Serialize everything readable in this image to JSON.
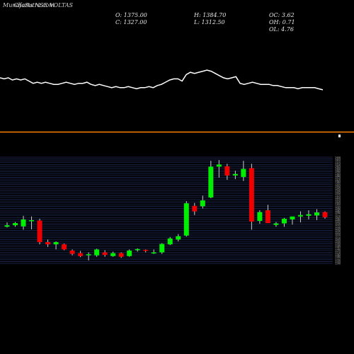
{
  "header": {
    "watermark": "MunafaSutra.com",
    "title": "Charts NSE VOLTAS",
    "open": "O: 1375.00",
    "close": "C: 1327.00",
    "high": "H: 1384.70",
    "low": "L: 1312.50",
    "oc": "OC: 3.62",
    "oh": "OH: 0.71",
    "ol": "OL: 4.76"
  },
  "chart_data": {
    "type": "candlestick",
    "candles": [
      {
        "o": 1240,
        "h": 1252,
        "l": 1238,
        "c": 1244
      },
      {
        "o": 1244,
        "h": 1253,
        "l": 1240,
        "c": 1250
      },
      {
        "o": 1241,
        "h": 1270,
        "l": 1232,
        "c": 1260
      },
      {
        "o": 1256,
        "h": 1268,
        "l": 1233,
        "c": 1258
      },
      {
        "o": 1257,
        "h": 1262,
        "l": 1192,
        "c": 1198
      },
      {
        "o": 1198,
        "h": 1205,
        "l": 1185,
        "c": 1192
      },
      {
        "o": 1192,
        "h": 1200,
        "l": 1178,
        "c": 1198
      },
      {
        "o": 1192,
        "h": 1194,
        "l": 1176,
        "c": 1178
      },
      {
        "o": 1175,
        "h": 1178,
        "l": 1162,
        "c": 1166
      },
      {
        "o": 1168,
        "h": 1174,
        "l": 1157,
        "c": 1160
      },
      {
        "o": 1163,
        "h": 1170,
        "l": 1148,
        "c": 1165
      },
      {
        "o": 1162,
        "h": 1180,
        "l": 1158,
        "c": 1178
      },
      {
        "o": 1170,
        "h": 1176,
        "l": 1158,
        "c": 1163
      },
      {
        "o": 1160,
        "h": 1172,
        "l": 1158,
        "c": 1168
      },
      {
        "o": 1168,
        "h": 1170,
        "l": 1155,
        "c": 1158
      },
      {
        "o": 1160,
        "h": 1178,
        "l": 1158,
        "c": 1175
      },
      {
        "o": 1177,
        "h": 1181,
        "l": 1172,
        "c": 1179
      },
      {
        "o": 1177,
        "h": 1178,
        "l": 1170,
        "c": 1175
      },
      {
        "o": 1168,
        "h": 1178,
        "l": 1166,
        "c": 1170
      },
      {
        "o": 1170,
        "h": 1195,
        "l": 1166,
        "c": 1193
      },
      {
        "o": 1192,
        "h": 1212,
        "l": 1190,
        "c": 1208
      },
      {
        "o": 1205,
        "h": 1220,
        "l": 1200,
        "c": 1214
      },
      {
        "o": 1216,
        "h": 1310,
        "l": 1213,
        "c": 1304
      },
      {
        "o": 1297,
        "h": 1305,
        "l": 1272,
        "c": 1282
      },
      {
        "o": 1296,
        "h": 1325,
        "l": 1290,
        "c": 1312
      },
      {
        "o": 1320,
        "h": 1420,
        "l": 1318,
        "c": 1404
      },
      {
        "o": 1404,
        "h": 1422,
        "l": 1374,
        "c": 1410
      },
      {
        "o": 1405,
        "h": 1412,
        "l": 1368,
        "c": 1380
      },
      {
        "o": 1380,
        "h": 1393,
        "l": 1370,
        "c": 1384
      },
      {
        "o": 1376,
        "h": 1420,
        "l": 1365,
        "c": 1398
      },
      {
        "o": 1400,
        "h": 1412,
        "l": 1232,
        "c": 1254
      },
      {
        "o": 1256,
        "h": 1285,
        "l": 1248,
        "c": 1280
      },
      {
        "o": 1285,
        "h": 1300,
        "l": 1250,
        "c": 1250
      },
      {
        "o": 1245,
        "h": 1253,
        "l": 1240,
        "c": 1249
      },
      {
        "o": 1249,
        "h": 1264,
        "l": 1240,
        "c": 1262
      },
      {
        "o": 1260,
        "h": 1267,
        "l": 1246,
        "c": 1268
      },
      {
        "o": 1268,
        "h": 1282,
        "l": 1252,
        "c": 1272
      },
      {
        "o": 1270,
        "h": 1285,
        "l": 1260,
        "c": 1274
      },
      {
        "o": 1271,
        "h": 1288,
        "l": 1258,
        "c": 1279
      },
      {
        "o": 1280,
        "h": 1282,
        "l": 1262,
        "c": 1266
      }
    ],
    "ylim": [
      1140,
      1430
    ],
    "upColor": "#00ee00",
    "downColor": "#ee0000",
    "grid": true,
    "y_tick_labels": [
      "1430",
      "1425",
      "1420",
      "1415",
      "1410",
      "1405",
      "1400",
      "1395",
      "1390",
      "1385",
      "1380",
      "1375",
      "1370",
      "1365",
      "1360",
      "1355",
      "1350",
      "1345",
      "1340",
      "1335",
      "1330",
      "1325",
      "1320",
      "1315",
      "1310",
      "1305",
      "1300",
      "1295",
      "1290",
      "1285",
      "1280",
      "1275",
      "1270",
      "1265",
      "1260",
      "1255",
      "1250",
      "1245",
      "1240",
      "1235",
      "1230",
      "1225",
      "1220",
      "1215",
      "1210",
      "1205",
      "1200",
      "1195",
      "1190",
      "1185",
      "1180",
      "1175",
      "1170",
      "1165",
      "1160",
      "1155",
      "1150",
      "1145",
      "1140"
    ],
    "volume_line": [
      42,
      41,
      42,
      40,
      41,
      40,
      41,
      39,
      37,
      38,
      37,
      38,
      37,
      36,
      36,
      37,
      38,
      37,
      36,
      37,
      37,
      38,
      36,
      35,
      36,
      35,
      34,
      33,
      34,
      33,
      33,
      34,
      33,
      32,
      33,
      33,
      34,
      33,
      35,
      36,
      38,
      40,
      41,
      41,
      39,
      45,
      47,
      46,
      47,
      48,
      49,
      48,
      46,
      44,
      42,
      41,
      42,
      43,
      37,
      36,
      37,
      38,
      37,
      36,
      36,
      36,
      35,
      35,
      34,
      33,
      33,
      33,
      32,
      33,
      33,
      33,
      33,
      32,
      31
    ]
  }
}
